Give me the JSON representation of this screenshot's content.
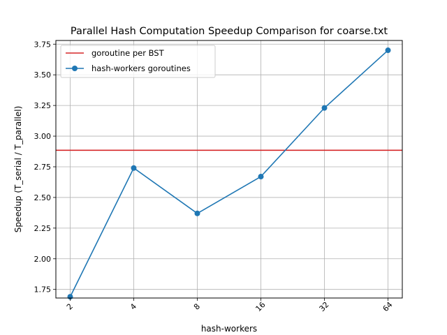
{
  "chart_data": {
    "type": "line",
    "title": "Parallel Hash Computation Speedup Comparison for coarse.txt",
    "xlabel": "hash-workers",
    "ylabel": "Speedup (T_serial / T_parallel)",
    "x_scale": "log2",
    "categories": [
      "2",
      "4",
      "8",
      "16",
      "32",
      "64"
    ],
    "x": [
      2,
      4,
      8,
      16,
      32,
      64
    ],
    "ylim": [
      1.68,
      3.78
    ],
    "yticks": [
      1.75,
      2.0,
      2.25,
      2.5,
      2.75,
      3.0,
      3.25,
      3.5,
      3.75
    ],
    "grid": true,
    "legend_position": "top-left",
    "series": [
      {
        "name": "hash-workers goroutines",
        "kind": "line-marker",
        "color": "#1f77b4",
        "values": [
          1.69,
          2.74,
          2.37,
          2.67,
          3.23,
          3.7
        ]
      }
    ],
    "reference_lines": [
      {
        "name": "goroutine per BST",
        "kind": "hline",
        "color": "#d62728",
        "value": 2.885
      }
    ]
  }
}
